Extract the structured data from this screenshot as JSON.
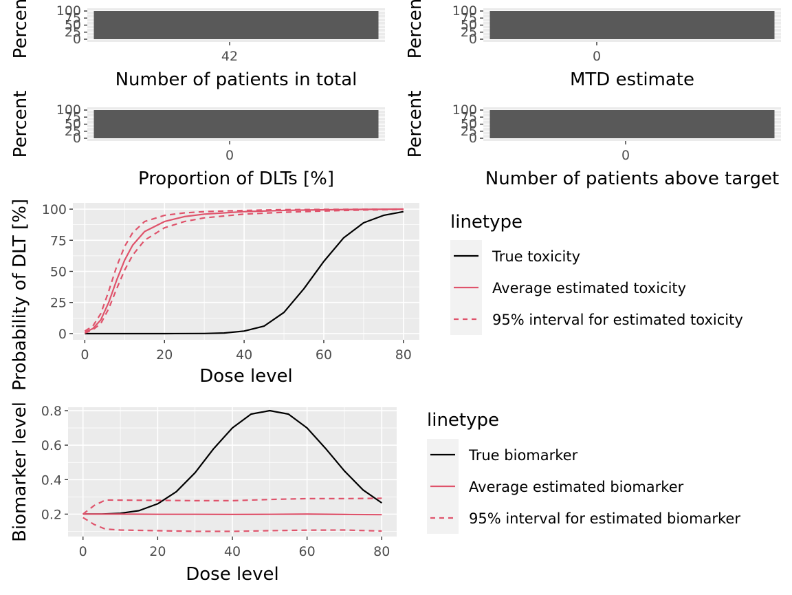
{
  "colors": {
    "panel_bg": "#EBEBEB",
    "grid": "#FFFFFF",
    "bar_fill": "#595959",
    "tick_text": "#4D4D4D",
    "tick_mark": "#333333",
    "true_line": "#000000",
    "estimate_line": "#DF536B",
    "legend_key_bg": "#F2F2F2"
  },
  "chart_data": [
    {
      "type": "bar",
      "panel": "patients_total",
      "categories": [
        "42"
      ],
      "values": [
        100
      ],
      "xlabel": "Number of patients in total",
      "ylabel": "Percent",
      "yticks": [
        "0",
        "25",
        "50",
        "75",
        "100"
      ],
      "ylim": [
        0,
        100
      ]
    },
    {
      "type": "bar",
      "panel": "mtd_estimate",
      "categories": [
        "0"
      ],
      "values": [
        100
      ],
      "xlabel": "MTD estimate",
      "ylabel": "Percent",
      "yticks": [
        "0",
        "25",
        "50",
        "75",
        "100"
      ],
      "ylim": [
        0,
        100
      ]
    },
    {
      "type": "bar",
      "panel": "dlt_proportion",
      "categories": [
        "0"
      ],
      "values": [
        100
      ],
      "xlabel": "Proportion of DLTs [%]",
      "ylabel": "Percent",
      "yticks": [
        "0",
        "25",
        "50",
        "75",
        "100"
      ],
      "ylim": [
        0,
        100
      ]
    },
    {
      "type": "bar",
      "panel": "patients_above_target",
      "categories": [
        "0"
      ],
      "values": [
        100
      ],
      "xlabel": "Number of patients above target",
      "ylabel": "Percent",
      "yticks": [
        "0",
        "25",
        "50",
        "75",
        "100"
      ],
      "ylim": [
        0,
        100
      ]
    },
    {
      "type": "line",
      "panel": "toxicity",
      "xlabel": "Dose level",
      "ylabel": "Probability of DLT [%]",
      "xlim": [
        -3,
        84
      ],
      "ylim": [
        -5,
        105
      ],
      "xticks": [
        "0",
        "20",
        "40",
        "60",
        "80"
      ],
      "yticks": [
        "0",
        "25",
        "50",
        "75",
        "100"
      ],
      "legend": {
        "title": "linetype",
        "position": "right"
      },
      "series": [
        {
          "name": "True toxicity",
          "style": "solid",
          "color": "#000000",
          "x": [
            0,
            10,
            20,
            30,
            35,
            40,
            45,
            50,
            55,
            60,
            65,
            70,
            75,
            80
          ],
          "y": [
            0,
            0,
            0,
            0.1,
            0.5,
            2,
            6,
            17,
            36,
            58,
            77,
            89,
            95,
            98
          ]
        },
        {
          "name": "Average estimated toxicity",
          "style": "solid",
          "color": "#DF536B",
          "x": [
            0,
            2,
            4,
            6,
            8,
            10,
            12,
            15,
            20,
            25,
            30,
            40,
            50,
            60,
            70,
            80
          ],
          "y": [
            1,
            4,
            11,
            25,
            43,
            59,
            71,
            82,
            90,
            94,
            96,
            98,
            99,
            99.5,
            99.8,
            100
          ]
        },
        {
          "name": "95% interval for estimated toxicity",
          "style": "dashed",
          "color": "#DF536B",
          "x": [
            0,
            2,
            4,
            6,
            8,
            10,
            12,
            15,
            20,
            25,
            30,
            40,
            50,
            60,
            70,
            80
          ],
          "y": [
            2,
            6,
            16,
            34,
            54,
            70,
            81,
            90,
            95,
            97,
            98,
            99,
            99.6,
            99.8,
            99.9,
            100
          ]
        },
        {
          "name": "95% interval for estimated toxicity",
          "style": "dashed",
          "color": "#DF536B",
          "x": [
            0,
            2,
            4,
            6,
            8,
            10,
            12,
            15,
            20,
            25,
            30,
            40,
            50,
            60,
            70,
            80
          ],
          "y": [
            0.5,
            3,
            8,
            20,
            36,
            51,
            63,
            75,
            85,
            90,
            93,
            96,
            97.5,
            98.5,
            99.3,
            99.8
          ]
        }
      ]
    },
    {
      "type": "line",
      "panel": "biomarker",
      "xlabel": "Dose level",
      "ylabel": "Biomarker level",
      "xlim": [
        -4,
        84
      ],
      "ylim": [
        0.07,
        0.82
      ],
      "xticks": [
        "0",
        "20",
        "40",
        "60",
        "80"
      ],
      "yticks": [
        "0.2",
        "0.4",
        "0.6",
        "0.8"
      ],
      "legend": {
        "title": "linetype",
        "position": "right"
      },
      "series": [
        {
          "name": "True biomarker",
          "style": "solid",
          "color": "#000000",
          "x": [
            0,
            5,
            10,
            15,
            20,
            25,
            30,
            35,
            40,
            45,
            50,
            55,
            60,
            65,
            70,
            75,
            80
          ],
          "y": [
            0.2,
            0.2,
            0.205,
            0.22,
            0.26,
            0.33,
            0.44,
            0.58,
            0.7,
            0.78,
            0.8,
            0.78,
            0.7,
            0.58,
            0.45,
            0.34,
            0.265
          ]
        },
        {
          "name": "Average estimated biomarker",
          "style": "solid",
          "color": "#DF536B",
          "x": [
            0,
            10,
            20,
            30,
            40,
            50,
            60,
            70,
            80
          ],
          "y": [
            0.2,
            0.2,
            0.199,
            0.199,
            0.198,
            0.199,
            0.2,
            0.198,
            0.197
          ]
        },
        {
          "name": "95% interval for estimated biomarker",
          "style": "dashed",
          "color": "#DF536B",
          "x": [
            0,
            3,
            6,
            10,
            20,
            30,
            40,
            50,
            60,
            70,
            80
          ],
          "y": [
            0.2,
            0.25,
            0.282,
            0.281,
            0.28,
            0.278,
            0.278,
            0.285,
            0.29,
            0.29,
            0.292
          ]
        },
        {
          "name": "95% interval for estimated biomarker",
          "style": "dashed",
          "color": "#DF536B",
          "x": [
            0,
            3,
            6,
            10,
            20,
            30,
            40,
            50,
            60,
            70,
            80
          ],
          "y": [
            0.18,
            0.14,
            0.113,
            0.108,
            0.104,
            0.1,
            0.1,
            0.104,
            0.107,
            0.108,
            0.102
          ]
        }
      ]
    }
  ]
}
